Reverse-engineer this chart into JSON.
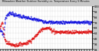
{
  "title": "Milwaukee Weather Outdoor Humidity vs. Temperature Every 5 Minutes",
  "bg_color": "#c8c8c8",
  "plot_bg_color": "#ffffff",
  "blue_color": "#0000dd",
  "red_color": "#dd0000",
  "y_min": 20,
  "y_max": 100,
  "n_points": 288,
  "blue_series": [
    55,
    54,
    53,
    54,
    55,
    54,
    52,
    50,
    48,
    46,
    44,
    48,
    55,
    62,
    68,
    72,
    75,
    77,
    79,
    80,
    81,
    82,
    82,
    83,
    84,
    85,
    86,
    86,
    87,
    87,
    88,
    88,
    88,
    87,
    87,
    87,
    87,
    86,
    86,
    85,
    85,
    85,
    84,
    84,
    84,
    84,
    83,
    83,
    83,
    83,
    83,
    83,
    83,
    83,
    83,
    83,
    83,
    83,
    83,
    82,
    82,
    82,
    82,
    82,
    82,
    81,
    81,
    81,
    81,
    80,
    80,
    80,
    80,
    80,
    80,
    79,
    79,
    79,
    79,
    79,
    79,
    79,
    79,
    79,
    78,
    78,
    78,
    78,
    78,
    78,
    77,
    77,
    77,
    77,
    77,
    77,
    77,
    77,
    76,
    76,
    76,
    76,
    76,
    76,
    76,
    76,
    76,
    76,
    75,
    75,
    75,
    75,
    75,
    75,
    75,
    75,
    75,
    74,
    74,
    74,
    74,
    74,
    74,
    74,
    73,
    73,
    73,
    73,
    73,
    73,
    73,
    73,
    73,
    72,
    72,
    72,
    72,
    72,
    72,
    72,
    72,
    72,
    71,
    71,
    71,
    71,
    71,
    71,
    71,
    71,
    71,
    71,
    71,
    70,
    70,
    70,
    70,
    70,
    70,
    70,
    70,
    70,
    70,
    70,
    70,
    70,
    70,
    70,
    70,
    70,
    70,
    70,
    70,
    70,
    70,
    70,
    70,
    70,
    70,
    70,
    70,
    70,
    70,
    70,
    70,
    70,
    70,
    70,
    70,
    70,
    70,
    70,
    70,
    70,
    70,
    70,
    70,
    70,
    70,
    70,
    70,
    70,
    70,
    70,
    70,
    70,
    70,
    70,
    70,
    70,
    70,
    70,
    70,
    70,
    70,
    70,
    70,
    70,
    70,
    70,
    70,
    70,
    70,
    70,
    70,
    70,
    70,
    70,
    70,
    70,
    70,
    70,
    70,
    70,
    70,
    70,
    70,
    70,
    70,
    70,
    70,
    70,
    70,
    70,
    70,
    70,
    70,
    70,
    70,
    70,
    70,
    70,
    70,
    70,
    70,
    70,
    70,
    70,
    70,
    70,
    70,
    70,
    70,
    70,
    70,
    70,
    70,
    70,
    70,
    70,
    70,
    70,
    70,
    70,
    70,
    70,
    70,
    70,
    70,
    70,
    70,
    70,
    70,
    70,
    70,
    70,
    70,
    70
  ],
  "red_series": [
    60,
    61,
    62,
    64,
    66,
    68,
    70,
    68,
    65,
    60,
    55,
    50,
    46,
    42,
    40,
    38,
    37,
    36,
    35,
    34,
    33,
    33,
    32,
    32,
    32,
    31,
    31,
    31,
    30,
    30,
    30,
    30,
    30,
    29,
    29,
    29,
    29,
    29,
    29,
    28,
    28,
    28,
    28,
    28,
    28,
    28,
    28,
    28,
    28,
    28,
    28,
    28,
    28,
    28,
    28,
    28,
    28,
    28,
    29,
    29,
    29,
    29,
    29,
    29,
    29,
    30,
    30,
    30,
    30,
    30,
    30,
    30,
    30,
    30,
    31,
    31,
    31,
    31,
    31,
    31,
    31,
    32,
    32,
    32,
    32,
    33,
    33,
    33,
    33,
    34,
    34,
    35,
    35,
    35,
    36,
    36,
    37,
    37,
    38,
    38,
    39,
    39,
    40,
    40,
    41,
    41,
    42,
    42,
    43,
    43,
    44,
    45,
    45,
    46,
    47,
    47,
    48,
    49,
    49,
    50,
    51,
    52,
    52,
    53,
    54,
    55,
    55,
    56,
    57,
    57,
    58,
    58,
    58,
    59,
    59,
    59,
    59,
    59,
    59,
    59,
    59,
    59,
    59,
    59,
    59,
    59,
    59,
    59,
    59,
    59,
    59,
    59,
    59,
    59,
    58,
    58,
    57,
    57,
    57,
    56,
    56,
    55,
    55,
    55,
    55,
    54,
    54,
    54,
    54,
    53,
    53,
    53,
    53,
    53,
    52,
    52,
    52,
    52,
    52,
    52,
    52,
    52,
    52,
    52,
    52,
    52,
    52,
    52,
    52,
    52,
    52,
    52,
    52,
    52,
    52,
    52,
    52,
    52,
    52,
    52,
    52,
    52,
    52,
    52,
    52,
    52,
    52,
    52,
    52,
    52,
    52,
    52,
    52,
    52,
    52,
    52,
    52,
    52,
    52,
    52,
    52,
    52,
    52,
    52,
    52,
    52,
    52,
    52,
    52,
    52,
    52,
    52,
    52,
    52,
    52,
    52,
    52,
    52,
    52,
    52,
    52,
    52,
    52,
    52,
    52,
    52,
    52,
    52,
    52,
    52,
    52,
    52,
    52,
    52,
    52,
    52,
    52,
    52,
    52,
    52,
    52,
    52,
    52,
    52,
    52,
    52,
    52,
    52,
    52,
    52,
    52,
    52,
    52,
    52,
    52,
    52,
    52,
    52,
    52,
    52,
    52,
    52,
    52,
    52,
    52,
    52,
    52,
    52
  ],
  "yticks": [
    20,
    30,
    40,
    50,
    60,
    70,
    80,
    90,
    100
  ],
  "n_xticks": 36
}
